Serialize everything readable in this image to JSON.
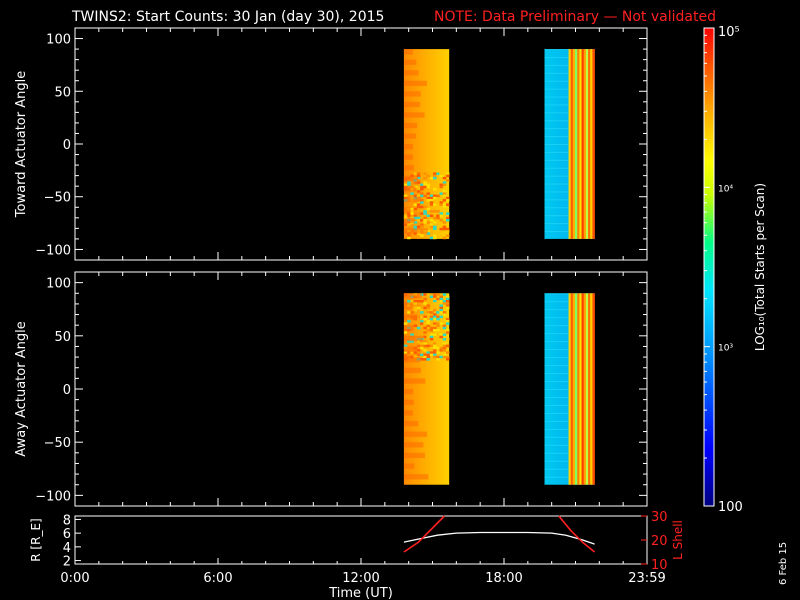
{
  "title": {
    "main": "TWINS2: Start Counts: 30 Jan (day  30), 2015",
    "note": "NOTE: Data Preliminary — Not validated"
  },
  "side_date": "6 Feb 15",
  "colorbar": {
    "label": "LOG₁₀(Total Starts per Scan)",
    "scale": "log",
    "range": [
      100,
      100000
    ],
    "tick_labels": [
      "10⁵",
      "10⁴",
      "10³",
      "100"
    ],
    "colors": [
      "#000080",
      "#0000ff",
      "#0088ff",
      "#00e5ff",
      "#00ff88",
      "#c8ff00",
      "#ffff00",
      "#ffb000",
      "#ff5500",
      "#ff0000"
    ]
  },
  "x_axis": {
    "label": "Time (UT)",
    "tick_labels": [
      "0:00",
      "6:00",
      "12:00",
      "18:00",
      "23:59"
    ]
  },
  "chart_data": [
    {
      "type": "heatmap",
      "ylabel": "Toward Actuator Angle",
      "xlim": [
        0,
        24
      ],
      "ylim": [
        -110,
        110
      ],
      "yticks": [
        100,
        50,
        0,
        -50,
        -100
      ],
      "blocks": [
        {
          "t_start": 13.8,
          "t_end": 15.7,
          "angle_range": [
            -90,
            90
          ],
          "pattern": "orange-gradient-noisy-bottom",
          "level": "high"
        },
        {
          "t_start": 19.7,
          "t_end": 21.8,
          "angle_range": [
            -90,
            90
          ],
          "pattern": "cyan-with-vertical-stripes",
          "level": "low"
        }
      ]
    },
    {
      "type": "heatmap",
      "ylabel": "Away Actuator Angle",
      "xlim": [
        0,
        24
      ],
      "ylim": [
        -110,
        110
      ],
      "yticks": [
        100,
        50,
        0,
        -50,
        -100
      ],
      "blocks": [
        {
          "t_start": 13.8,
          "t_end": 15.7,
          "angle_range": [
            -90,
            90
          ],
          "pattern": "orange-gradient-noisy-top",
          "level": "high"
        },
        {
          "t_start": 19.7,
          "t_end": 21.8,
          "angle_range": [
            -90,
            90
          ],
          "pattern": "cyan-with-vertical-stripes",
          "level": "low"
        }
      ]
    },
    {
      "type": "line",
      "ylabel_left": "R [R_E]",
      "ylabel_right": "L Shell",
      "xlim": [
        0,
        24
      ],
      "ylim_left": [
        1.5,
        8.5
      ],
      "ylim_right": [
        10,
        30
      ],
      "yticks_left": [
        8,
        6,
        4,
        2
      ],
      "yticks_right": [
        30,
        20,
        10
      ],
      "series": [
        {
          "axis": "left",
          "color": "#ffffff",
          "x": [
            13.8,
            14.5,
            15.2,
            16.0,
            17.0,
            18.0,
            19.0,
            20.0,
            20.6,
            21.3,
            21.8
          ],
          "y": [
            4.7,
            5.2,
            5.7,
            6.0,
            6.1,
            6.1,
            6.1,
            6.0,
            5.7,
            5.0,
            4.4
          ]
        },
        {
          "axis": "right",
          "color": "#ff2020",
          "x": [
            13.8,
            14.4,
            15.0,
            15.5
          ],
          "y": [
            15,
            19,
            25,
            30
          ]
        },
        {
          "axis": "right",
          "color": "#ff2020",
          "x": [
            20.3,
            20.8,
            21.3,
            21.8
          ],
          "y": [
            30,
            24,
            19,
            15
          ]
        }
      ]
    }
  ]
}
